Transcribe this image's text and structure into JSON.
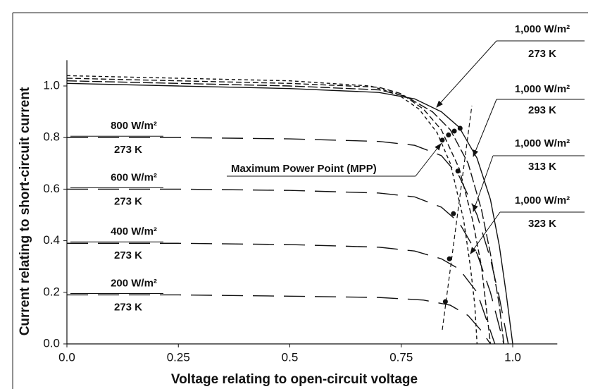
{
  "chart_data": {
    "type": "line",
    "x_label": "Voltage relating to open-circuit voltage",
    "y_label": "Current relating to short-circuit current",
    "xlim": [
      0,
      1.1
    ],
    "ylim": [
      0,
      1.1
    ],
    "xticks": [
      {
        "value": 0,
        "label": "0.0"
      },
      0.25,
      0.5,
      0.75,
      {
        "value": 1,
        "label": "1.0"
      }
    ],
    "yticks": [
      {
        "value": 0,
        "label": "0.0"
      },
      0.2,
      0.4,
      0.6,
      0.8,
      {
        "value": 1,
        "label": "1.0"
      }
    ],
    "series": [
      {
        "name": "1,000 W/m²",
        "temperature": "273 K",
        "color": "#111",
        "line_style": "solid",
        "x": [
          0,
          0.25,
          0.5,
          0.7,
          0.78,
          0.84,
          0.88,
          0.92,
          0.95,
          0.97,
          0.985,
          1.0
        ],
        "values": [
          1.01,
          1.0,
          0.99,
          0.975,
          0.95,
          0.9,
          0.84,
          0.72,
          0.56,
          0.38,
          0.2,
          0
        ]
      },
      {
        "name": "1,000 W/m²",
        "temperature": "293 K",
        "color": "#111",
        "line_style": "dashed",
        "x": [
          0,
          0.25,
          0.5,
          0.7,
          0.76,
          0.82,
          0.86,
          0.9,
          0.93,
          0.95,
          0.97,
          0.98
        ],
        "values": [
          1.02,
          1.01,
          1.0,
          0.985,
          0.96,
          0.9,
          0.83,
          0.7,
          0.52,
          0.35,
          0.15,
          0
        ]
      },
      {
        "name": "1,000 W/m²",
        "temperature": "313 K",
        "color": "#111",
        "line_style": "medium-dash",
        "x": [
          0,
          0.25,
          0.5,
          0.7,
          0.75,
          0.8,
          0.84,
          0.88,
          0.91,
          0.93,
          0.94,
          0.95
        ],
        "values": [
          1.03,
          1.02,
          1.01,
          0.995,
          0.97,
          0.91,
          0.83,
          0.68,
          0.48,
          0.3,
          0.15,
          0
        ]
      },
      {
        "name": "1,000 W/m²",
        "temperature": "323 K",
        "color": "#111",
        "line_style": "short-dash",
        "x": [
          0,
          0.25,
          0.5,
          0.68,
          0.74,
          0.79,
          0.83,
          0.86,
          0.89,
          0.905,
          0.915,
          0.92
        ],
        "values": [
          1.04,
          1.03,
          1.02,
          1.0,
          0.97,
          0.91,
          0.82,
          0.7,
          0.48,
          0.3,
          0.15,
          0
        ]
      },
      {
        "name": "800 W/m²",
        "temperature": "273 K",
        "color": "#111",
        "line_style": "long-dash",
        "x": [
          0,
          0.25,
          0.5,
          0.7,
          0.78,
          0.84,
          0.88,
          0.92,
          0.95,
          0.97,
          0.99
        ],
        "values": [
          0.8,
          0.8,
          0.795,
          0.785,
          0.77,
          0.73,
          0.65,
          0.5,
          0.33,
          0.18,
          0
        ]
      },
      {
        "name": "600 W/m²",
        "temperature": "273 K",
        "color": "#111",
        "line_style": "long-dash",
        "x": [
          0,
          0.25,
          0.5,
          0.7,
          0.78,
          0.84,
          0.88,
          0.92,
          0.95,
          0.98
        ],
        "values": [
          0.6,
          0.6,
          0.595,
          0.585,
          0.57,
          0.53,
          0.47,
          0.35,
          0.2,
          0
        ]
      },
      {
        "name": "400 W/m²",
        "temperature": "273 K",
        "color": "#111",
        "line_style": "long-dash",
        "x": [
          0,
          0.25,
          0.5,
          0.7,
          0.78,
          0.84,
          0.88,
          0.92,
          0.96
        ],
        "values": [
          0.39,
          0.39,
          0.385,
          0.375,
          0.36,
          0.33,
          0.29,
          0.2,
          0
        ]
      },
      {
        "name": "200 W/m²",
        "temperature": "273 K",
        "color": "#111",
        "line_style": "long-dash",
        "x": [
          0,
          0.25,
          0.5,
          0.7,
          0.8,
          0.86,
          0.9,
          0.93,
          0.95
        ],
        "values": [
          0.19,
          0.19,
          0.185,
          0.18,
          0.17,
          0.15,
          0.11,
          0.05,
          0
        ]
      },
      {
        "name": "Maximum Power Point (MPP)",
        "color": "#111",
        "line_style": "points",
        "x": [
          0.842,
          0.856,
          0.869,
          0.882,
          0.877,
          0.867,
          0.858,
          0.849
        ],
        "values": [
          0.79,
          0.81,
          0.825,
          0.836,
          0.67,
          0.505,
          0.33,
          0.164
        ]
      }
    ]
  }
}
